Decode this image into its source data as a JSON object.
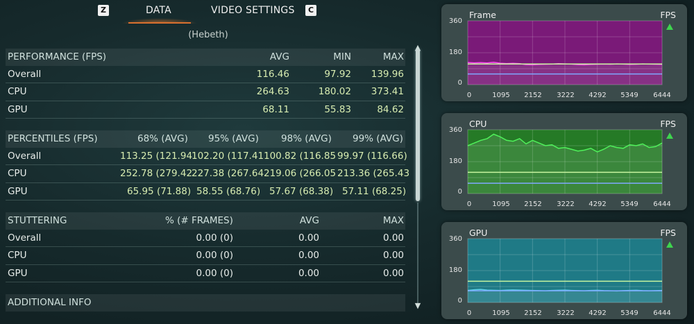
{
  "tabs": {
    "left_key": "Z",
    "active_label": "DATA",
    "other_label": "VIDEO SETTINGS",
    "right_key": "C"
  },
  "subtitle": "(Hebeth)",
  "performance": {
    "header": [
      "PERFORMANCE (FPS)",
      "AVG",
      "MIN",
      "MAX"
    ],
    "rows": [
      [
        "Overall",
        "116.46",
        "97.92",
        "139.96"
      ],
      [
        "CPU",
        "264.63",
        "180.02",
        "373.41"
      ],
      [
        "GPU",
        "68.11",
        "55.83",
        "84.62"
      ]
    ]
  },
  "percentiles": {
    "header": [
      "PERCENTILES (FPS)",
      "68% (AVG)",
      "95% (AVG)",
      "98% (AVG)",
      "99% (AVG)"
    ],
    "rows": [
      [
        "Overall",
        "113.25 (121.94",
        "102.20 (117.41",
        "100.82 (116.85",
        "99.97 (116.66)"
      ],
      [
        "CPU",
        "252.78 (279.42",
        "227.38 (267.64",
        "219.06 (266.05",
        "213.36 (265.43"
      ],
      [
        "GPU",
        "65.95 (71.88)",
        "58.55 (68.76)",
        "57.67 (68.38)",
        "57.11 (68.25)"
      ]
    ]
  },
  "stuttering": {
    "header": [
      "STUTTERING",
      "% (# FRAMES)",
      "AVG",
      "MAX"
    ],
    "rows": [
      [
        "Overall",
        "0.00 (0)",
        "0.00",
        "0.00"
      ],
      [
        "CPU",
        "0.00 (0)",
        "0.00",
        "0.00"
      ],
      [
        "GPU",
        "0.00 (0)",
        "0.00",
        "0.00"
      ]
    ]
  },
  "additional_info": {
    "header": "ADDITIONAL INFO"
  },
  "scrollbar": {
    "up": "▲",
    "down": "▼"
  },
  "chart_data": [
    {
      "type": "line",
      "title": "Frame",
      "unit": "FPS",
      "ylim": [
        0,
        360
      ],
      "yticks": [
        "360",
        "180",
        "0"
      ],
      "xticks": [
        "0",
        "1095",
        "2152",
        "3222",
        "4292",
        "5349",
        "6444"
      ],
      "x_range": [
        0,
        6444
      ],
      "fill_color": "#7a1a78",
      "line_color": "#ff4df5",
      "series": {
        "avg_line": 116.46,
        "low_line": 60,
        "values": [
          125,
          123,
          124,
          122,
          126,
          121,
          119,
          120,
          118,
          113,
          112,
          114,
          115,
          116,
          118,
          117,
          116,
          113,
          112,
          114,
          115,
          116,
          115,
          117,
          116,
          114,
          115,
          117,
          116,
          115,
          114
        ]
      }
    },
    {
      "type": "line",
      "title": "CPU",
      "unit": "FPS",
      "ylim": [
        0,
        360
      ],
      "yticks": [
        "360",
        "180",
        "0"
      ],
      "xticks": [
        "0",
        "1095",
        "2152",
        "3222",
        "4292",
        "5349",
        "6444"
      ],
      "x_range": [
        0,
        6444
      ],
      "fill_color": "#257a26",
      "line_color": "#4ff05a",
      "series": {
        "avg_line": 120,
        "low_line": 58,
        "values": [
          270,
          285,
          300,
          310,
          335,
          320,
          300,
          295,
          310,
          280,
          300,
          285,
          270,
          275,
          255,
          260,
          250,
          240,
          245,
          255,
          235,
          250,
          270,
          260,
          255,
          275,
          270,
          280,
          260,
          265,
          285
        ]
      }
    },
    {
      "type": "line",
      "title": "GPU",
      "unit": "FPS",
      "ylim": [
        0,
        360
      ],
      "yticks": [
        "360",
        "180",
        "0"
      ],
      "xticks": [
        "0",
        "1095",
        "2152",
        "3222",
        "4292",
        "5349",
        "6444"
      ],
      "x_range": [
        0,
        6444
      ],
      "fill_color": "#1f7a86",
      "line_color": "#5fd3ea",
      "series": {
        "avg_line": 120,
        "low_line": 66,
        "values": [
          68,
          72,
          74,
          70,
          69,
          68,
          70,
          71,
          70,
          69,
          68,
          67,
          66,
          68,
          69,
          70,
          68,
          67,
          66,
          68,
          69,
          67,
          66,
          65,
          67,
          68,
          69,
          67,
          66,
          67,
          68
        ]
      }
    }
  ]
}
